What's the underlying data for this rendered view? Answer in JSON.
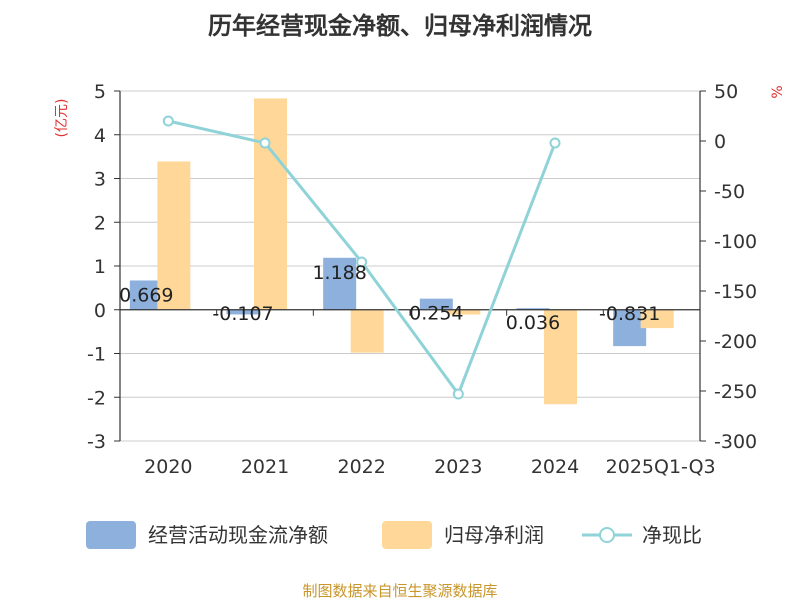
{
  "chart_data": {
    "type": "bar",
    "title": "历年经营现金净额、归母净利润情况",
    "categories": [
      "2020",
      "2021",
      "2022",
      "2023",
      "2024",
      "2025Q1-Q3"
    ],
    "series": [
      {
        "name": "经营活动现金流净额",
        "type": "bar",
        "axis": "left",
        "color": "#8eb0dc",
        "values": [
          0.669,
          -0.107,
          1.188,
          0.254,
          0.036,
          -0.831
        ],
        "labels": [
          "0.669",
          "-0.107",
          "1.188",
          "0.254",
          "0.036",
          "-0.831"
        ]
      },
      {
        "name": "归母净利润",
        "type": "bar",
        "axis": "left",
        "color": "#ffd899",
        "values": [
          3.39,
          4.83,
          -0.98,
          -0.11,
          -2.16,
          -0.42
        ]
      },
      {
        "name": "净现比",
        "type": "line",
        "axis": "right",
        "color": "#8fd3d8",
        "values": [
          20,
          -2,
          -121,
          -253,
          -2,
          null
        ]
      }
    ],
    "left_axis": {
      "unit": "(亿元)",
      "range": [
        -3,
        5
      ],
      "ticks": [
        "5",
        "4",
        "3",
        "2",
        "1",
        "0",
        "-1",
        "-2",
        "-3"
      ],
      "unit_color": "#e03030"
    },
    "right_axis": {
      "unit": "%",
      "range": [
        -300,
        50
      ],
      "ticks": [
        "50",
        "0",
        "-50",
        "-100",
        "-150",
        "-200",
        "-250",
        "-300"
      ],
      "unit_color": "#e03030"
    },
    "legend": {
      "placement": "bottom"
    },
    "grid": true
  },
  "source_note": "制图数据来自恒生聚源数据库"
}
